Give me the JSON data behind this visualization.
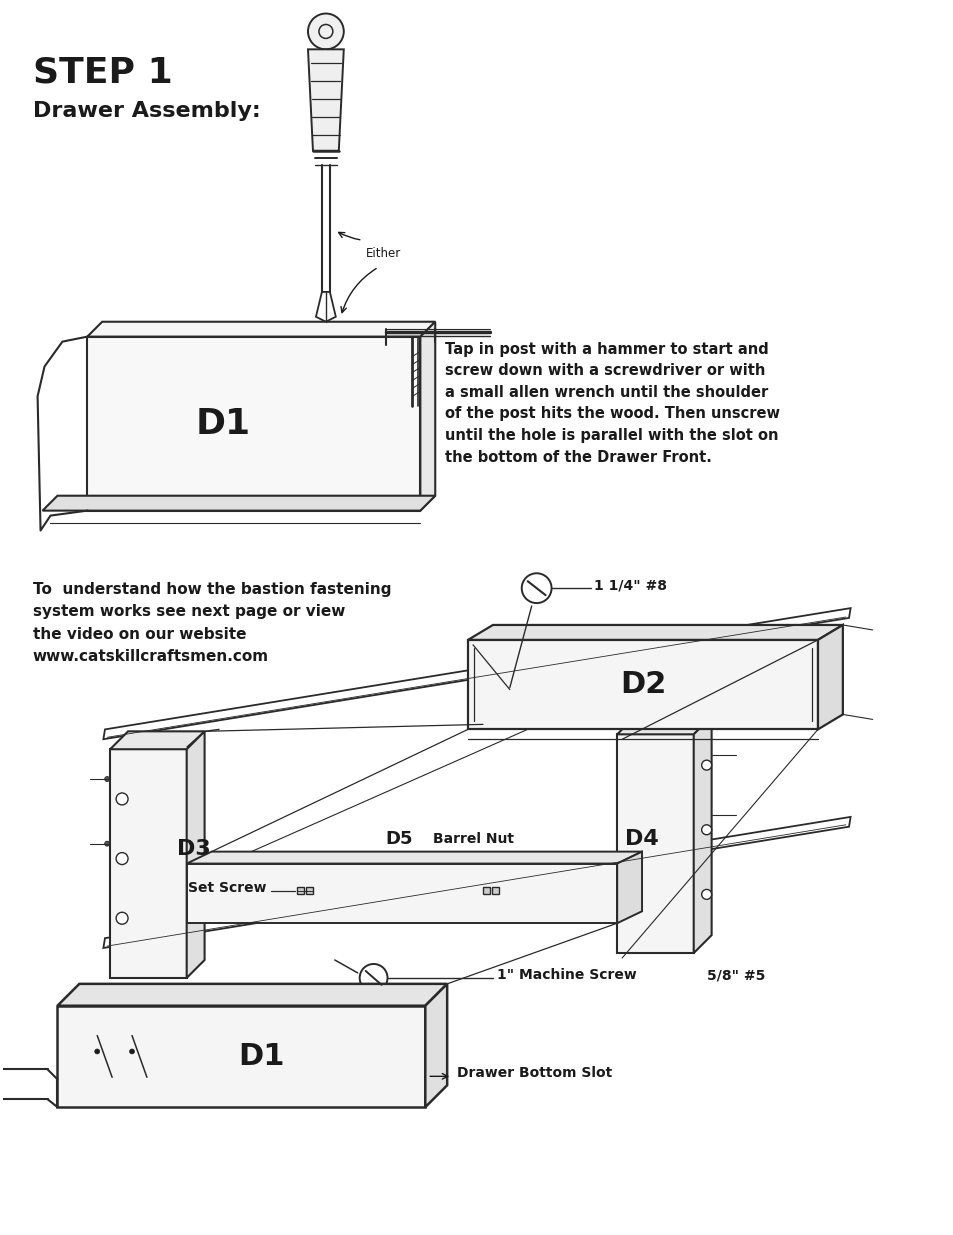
{
  "title": "STEP 1",
  "subtitle": "Drawer Assembly:",
  "bg_color": "#ffffff",
  "line_color": "#2a2a2a",
  "text_color": "#1a1a1a",
  "title_fontsize": 26,
  "subtitle_fontsize": 16,
  "body_fontsize": 10.5,
  "label_fontsize": 9,
  "instruction_text": "Tap in post with a hammer to start and\nscrew down with a screwdriver or with\na small allen wrench until the shoulder\nof the post hits the wood. Then unscrew\nuntil the hole is parallel with the slot on\nthe bottom of the Drawer Front.",
  "left_text": "To  understand how the bastion fastening\nsystem works see next page or view\nthe video on our website\nwww.catskillcraftsmen.com",
  "label_114_8": "1 1/4\" #8",
  "label_set_screw": "Set Screw",
  "label_barrel_nut": "Barrel Nut",
  "label_1in_machine_screw": "1\" Machine Screw",
  "label_58_5": "5/8\" #5",
  "label_drawer_bottom_slot": "Drawer Bottom Slot",
  "label_either": "Either",
  "label_D1": "D1",
  "label_D2": "D2",
  "label_D3": "D3",
  "label_D4": "D4",
  "label_D5": "D5",
  "label_D1b": "D1"
}
